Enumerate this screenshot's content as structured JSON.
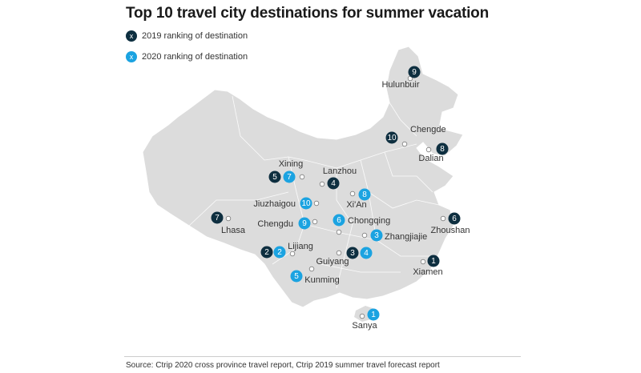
{
  "title": "Top 10 travel city destinations for summer vacation",
  "legend": [
    {
      "symbol": "x",
      "label": "2019 ranking of destination",
      "color": "#0e2f40"
    },
    {
      "symbol": "x",
      "label": "2020 ranking of destination",
      "color": "#1ba3e1"
    }
  ],
  "colors": {
    "map_fill": "#dcdcdc",
    "borders": "#ffffff",
    "rank_2019": "#0e2f40",
    "rank_2020": "#1ba3e1"
  },
  "cities": [
    {
      "name": "Hulunbuir",
      "rank_2019": "9",
      "rank_2020": null
    },
    {
      "name": "Chengde",
      "rank_2019": "10",
      "rank_2020": null
    },
    {
      "name": "Dalian",
      "rank_2019": "8",
      "rank_2020": null
    },
    {
      "name": "Xining",
      "rank_2019": "5",
      "rank_2020": "7"
    },
    {
      "name": "Lanzhou",
      "rank_2019": "4",
      "rank_2020": null
    },
    {
      "name": "Jiuzhaigou",
      "rank_2019": null,
      "rank_2020": "10"
    },
    {
      "name": "Xi'An",
      "rank_2019": null,
      "rank_2020": "8"
    },
    {
      "name": "Lhasa",
      "rank_2019": "7",
      "rank_2020": null
    },
    {
      "name": "Chengdu",
      "rank_2019": null,
      "rank_2020": "9"
    },
    {
      "name": "Chongqing",
      "rank_2019": null,
      "rank_2020": "6"
    },
    {
      "name": "Zhangjiajie",
      "rank_2019": null,
      "rank_2020": "3"
    },
    {
      "name": "Lijiang",
      "rank_2019": "2",
      "rank_2020": "2"
    },
    {
      "name": "Guiyang",
      "rank_2019": "3",
      "rank_2020": "4"
    },
    {
      "name": "Kunming",
      "rank_2019": null,
      "rank_2020": "5"
    },
    {
      "name": "Zhoushan",
      "rank_2019": "6",
      "rank_2020": null
    },
    {
      "name": "Xiamen",
      "rank_2019": "1",
      "rank_2020": null
    },
    {
      "name": "Sanya",
      "rank_2019": null,
      "rank_2020": "1"
    }
  ],
  "source": "Source: Ctrip 2020 cross province travel report, Ctrip 2019 summer travel forecast report"
}
